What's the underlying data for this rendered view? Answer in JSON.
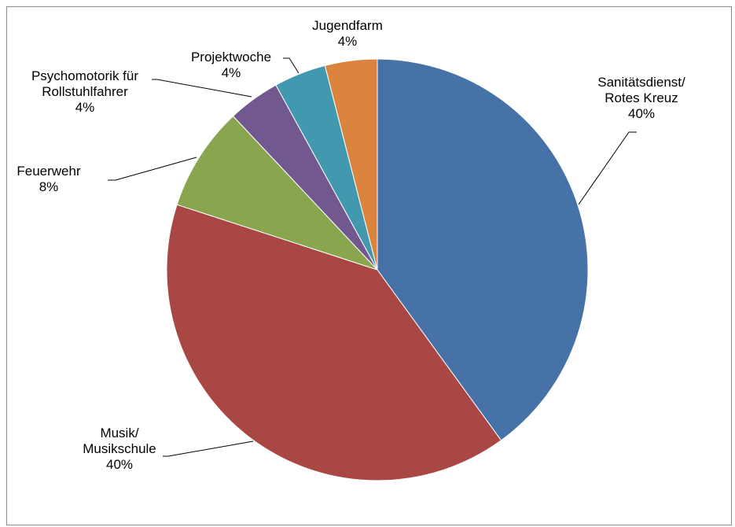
{
  "chart_data": {
    "type": "pie",
    "title": "",
    "start_angle_deg": 0,
    "direction": "clockwise",
    "slices": [
      {
        "name_lines": [
          "Sanitätsdienst/",
          "Rotes Kreuz"
        ],
        "percent_label": "40%",
        "value": 40,
        "color": "#4672a8"
      },
      {
        "name_lines": [
          "Musik/",
          "Musikschule"
        ],
        "percent_label": "40%",
        "value": 40,
        "color": "#a94744"
      },
      {
        "name_lines": [
          "Feuerwehr"
        ],
        "percent_label": "8%",
        "value": 8,
        "color": "#89a54e"
      },
      {
        "name_lines": [
          "Psychomotorik für",
          "Rollstuhlfahrer"
        ],
        "percent_label": "4%",
        "value": 4,
        "color": "#71588f"
      },
      {
        "name_lines": [
          "Projektwoche"
        ],
        "percent_label": "4%",
        "value": 4,
        "color": "#4198af"
      },
      {
        "name_lines": [
          "Jugendfarm"
        ],
        "percent_label": "4%",
        "value": 4,
        "color": "#db843d"
      }
    ],
    "legend": "none",
    "data_labels": "outside with leader lines"
  }
}
